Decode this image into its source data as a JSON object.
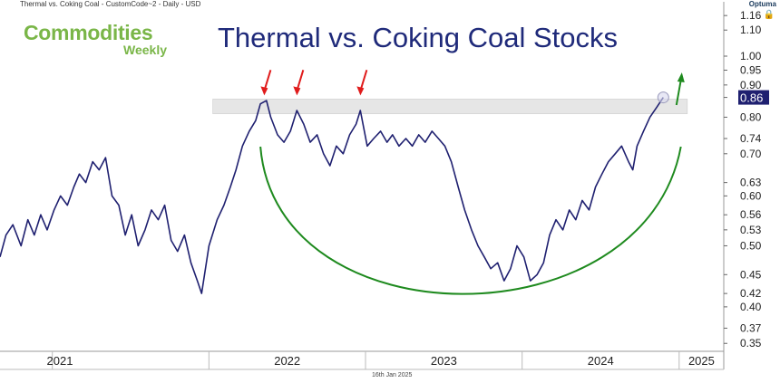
{
  "header": {
    "caption": "Thermal vs. Coking Coal - CustomCode~2 - Daily - USD",
    "brand_main": "Commodities",
    "brand_sub": "Weekly",
    "logo_text": "Optuma"
  },
  "footer": {
    "date": "16th Jan 2025"
  },
  "colors": {
    "line": "#1f2070",
    "arc": "#1e8a1e",
    "red_arrow": "#e01b1b",
    "green_arrow": "#1e8a1e",
    "band": "#e6e6e6",
    "last_value_bg": "#1f2070"
  },
  "chart_data": {
    "type": "line",
    "title": "Thermal vs. Coking Coal Stocks",
    "y_scale": "log",
    "ylim": [
      0.34,
      1.18
    ],
    "y_ticks": [
      1.16,
      1.1,
      1.0,
      0.95,
      0.9,
      0.86,
      0.8,
      0.74,
      0.7,
      0.63,
      0.6,
      0.56,
      0.53,
      0.5,
      0.45,
      0.42,
      0.4,
      0.37,
      0.35
    ],
    "y_tick_labels": [
      "1.16",
      "1.10",
      "1.00",
      "0.95",
      "0.90",
      "0.86",
      "0.80",
      "0.74",
      "0.70",
      "0.63",
      "0.60",
      "0.56",
      "0.53",
      "0.50",
      "0.45",
      "0.42",
      "0.40",
      "0.37",
      "0.35"
    ],
    "last_value": 0.86,
    "last_value_label": "0.86",
    "x_labels": [
      "2021",
      "2022",
      "2023",
      "2024",
      "2025"
    ],
    "xlim": [
      "2020-09-01",
      "2025-04-15"
    ],
    "resistance_band": [
      0.81,
      0.855
    ],
    "series": [
      {
        "values": [
          [
            "2020-09-01",
            0.48
          ],
          [
            "2020-09-15",
            0.52
          ],
          [
            "2020-10-01",
            0.54
          ],
          [
            "2020-10-20",
            0.5
          ],
          [
            "2020-11-05",
            0.55
          ],
          [
            "2020-11-20",
            0.52
          ],
          [
            "2020-12-05",
            0.56
          ],
          [
            "2020-12-20",
            0.53
          ],
          [
            "2021-01-05",
            0.57
          ],
          [
            "2021-01-20",
            0.6
          ],
          [
            "2021-02-05",
            0.58
          ],
          [
            "2021-02-20",
            0.62
          ],
          [
            "2021-03-05",
            0.65
          ],
          [
            "2021-03-20",
            0.63
          ],
          [
            "2021-04-05",
            0.68
          ],
          [
            "2021-04-20",
            0.66
          ],
          [
            "2021-05-05",
            0.69
          ],
          [
            "2021-05-20",
            0.6
          ],
          [
            "2021-06-05",
            0.58
          ],
          [
            "2021-06-20",
            0.52
          ],
          [
            "2021-07-05",
            0.56
          ],
          [
            "2021-07-20",
            0.5
          ],
          [
            "2021-08-05",
            0.53
          ],
          [
            "2021-08-20",
            0.57
          ],
          [
            "2021-09-05",
            0.55
          ],
          [
            "2021-09-20",
            0.58
          ],
          [
            "2021-10-05",
            0.51
          ],
          [
            "2021-10-20",
            0.49
          ],
          [
            "2021-11-05",
            0.52
          ],
          [
            "2021-11-20",
            0.47
          ],
          [
            "2021-12-05",
            0.44
          ],
          [
            "2021-12-15",
            0.42
          ],
          [
            "2022-01-01",
            0.5
          ],
          [
            "2022-01-20",
            0.55
          ],
          [
            "2022-02-05",
            0.58
          ],
          [
            "2022-02-20",
            0.62
          ],
          [
            "2022-03-05",
            0.66
          ],
          [
            "2022-03-20",
            0.72
          ],
          [
            "2022-04-05",
            0.76
          ],
          [
            "2022-04-20",
            0.79
          ],
          [
            "2022-05-01",
            0.84
          ],
          [
            "2022-05-15",
            0.85
          ],
          [
            "2022-05-25",
            0.8
          ],
          [
            "2022-06-10",
            0.75
          ],
          [
            "2022-06-25",
            0.73
          ],
          [
            "2022-07-10",
            0.76
          ],
          [
            "2022-07-25",
            0.82
          ],
          [
            "2022-08-10",
            0.78
          ],
          [
            "2022-08-25",
            0.73
          ],
          [
            "2022-09-10",
            0.75
          ],
          [
            "2022-09-25",
            0.7
          ],
          [
            "2022-10-10",
            0.67
          ],
          [
            "2022-10-25",
            0.72
          ],
          [
            "2022-11-10",
            0.7
          ],
          [
            "2022-11-25",
            0.75
          ],
          [
            "2022-12-10",
            0.78
          ],
          [
            "2022-12-20",
            0.82
          ],
          [
            "2023-01-05",
            0.72
          ],
          [
            "2023-01-20",
            0.74
          ],
          [
            "2023-02-05",
            0.76
          ],
          [
            "2023-02-20",
            0.73
          ],
          [
            "2023-03-05",
            0.75
          ],
          [
            "2023-03-20",
            0.72
          ],
          [
            "2023-04-05",
            0.74
          ],
          [
            "2023-04-20",
            0.72
          ],
          [
            "2023-05-05",
            0.75
          ],
          [
            "2023-05-20",
            0.73
          ],
          [
            "2023-06-05",
            0.76
          ],
          [
            "2023-06-20",
            0.74
          ],
          [
            "2023-07-05",
            0.72
          ],
          [
            "2023-07-20",
            0.68
          ],
          [
            "2023-08-05",
            0.62
          ],
          [
            "2023-08-20",
            0.57
          ],
          [
            "2023-09-05",
            0.53
          ],
          [
            "2023-09-20",
            0.5
          ],
          [
            "2023-10-05",
            0.48
          ],
          [
            "2023-10-20",
            0.46
          ],
          [
            "2023-11-05",
            0.47
          ],
          [
            "2023-11-20",
            0.44
          ],
          [
            "2023-12-05",
            0.46
          ],
          [
            "2023-12-20",
            0.5
          ],
          [
            "2024-01-05",
            0.48
          ],
          [
            "2024-01-20",
            0.44
          ],
          [
            "2024-02-05",
            0.45
          ],
          [
            "2024-02-20",
            0.47
          ],
          [
            "2024-03-05",
            0.52
          ],
          [
            "2024-03-20",
            0.55
          ],
          [
            "2024-04-05",
            0.53
          ],
          [
            "2024-04-20",
            0.57
          ],
          [
            "2024-05-05",
            0.55
          ],
          [
            "2024-05-20",
            0.59
          ],
          [
            "2024-06-05",
            0.57
          ],
          [
            "2024-06-20",
            0.62
          ],
          [
            "2024-07-05",
            0.65
          ],
          [
            "2024-07-20",
            0.68
          ],
          [
            "2024-08-05",
            0.7
          ],
          [
            "2024-08-20",
            0.72
          ],
          [
            "2024-09-05",
            0.68
          ],
          [
            "2024-09-15",
            0.66
          ],
          [
            "2024-09-25",
            0.72
          ],
          [
            "2024-10-10",
            0.76
          ],
          [
            "2024-10-25",
            0.8
          ],
          [
            "2024-11-10",
            0.83
          ],
          [
            "2024-11-25",
            0.86
          ]
        ]
      }
    ],
    "annotations": {
      "red_arrows_at": [
        "2022-05-10",
        "2022-07-25",
        "2022-12-20"
      ],
      "green_arrow_at": "2025-01-01",
      "cup_arc": {
        "start": "2022-05-01",
        "bottom": "2023-10-20",
        "end": "2025-01-05"
      }
    }
  }
}
